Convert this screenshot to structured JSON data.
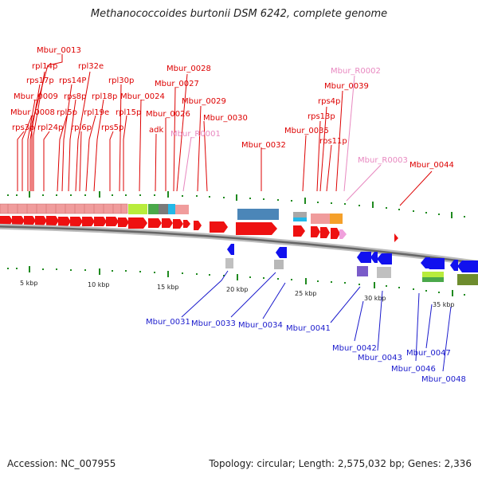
{
  "title": "Methanococcoides burtonii DSM 6242, complete genome",
  "footer": {
    "accession": "Accession: NC_007955",
    "summary": "Topology: circular; Length: 2,575,032 bp; Genes: 2,336"
  },
  "colors": {
    "forward_label": "#dd0000",
    "reverse_label": "#1a1acc",
    "rna_label": "#e888c0",
    "forward_gene": "#ee1111",
    "reverse_gene": "#1111ee",
    "ring": "#777777"
  },
  "scale_labels": [
    "5 kbp",
    "10 kbp",
    "15 kbp",
    "20 kbp",
    "25 kbp",
    "30 kbp",
    "35 kbp"
  ],
  "forward_labels": [
    "Mbur_0013",
    "rpl14p",
    "rps17p",
    "rpl32e",
    "rps14P",
    "Mbur_0009",
    "rps8p",
    "rpl30p",
    "Mbur_0008",
    "rpl5p",
    "rpl18p",
    "rpl19e",
    "Mbur_0024",
    "rps3p",
    "rpl24p",
    "rpl6p",
    "rps5p",
    "rpl15p",
    "adk",
    "Mbur_0026",
    "Mbur_0028",
    "Mbur_0027",
    "Mbur_0029",
    "Mbur_0030",
    "Mbur_0032",
    "Mbur_0035",
    "Mbur_0039",
    "rps4p",
    "rps13p",
    "rps11p",
    "Mbur_0044"
  ],
  "rna_labels": [
    "Mbur_R0001",
    "Mbur_R0002",
    "Mbur_R0003"
  ],
  "reverse_labels": [
    "Mbur_0031",
    "Mbur_0033",
    "Mbur_0034",
    "Mbur_0041",
    "Mbur_0042",
    "Mbur_0043",
    "Mbur_0047",
    "Mbur_0046",
    "Mbur_0048"
  ]
}
